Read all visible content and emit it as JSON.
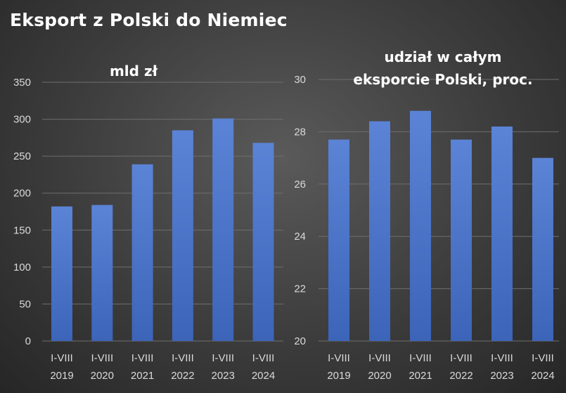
{
  "title": "Eksport z Polski do Niemiec",
  "colors": {
    "bar_top": "#5b83d6",
    "bar_bottom": "#3c64b8",
    "background": "#3c3c3c",
    "text": "#d9d9d9"
  },
  "chart_data": [
    {
      "type": "bar",
      "title": "mld zł",
      "categories": [
        [
          "I-VIII",
          "2019"
        ],
        [
          "I-VIII",
          "2020"
        ],
        [
          "I-VIII",
          "2021"
        ],
        [
          "I-VIII",
          "2022"
        ],
        [
          "I-VIII",
          "2023"
        ],
        [
          "I-VIII",
          "2024"
        ]
      ],
      "values": [
        182,
        184,
        239,
        285,
        301,
        268
      ],
      "ylim": [
        0,
        350
      ],
      "yticks": [
        0,
        50,
        100,
        150,
        200,
        250,
        300,
        350
      ],
      "grid": true
    },
    {
      "type": "bar",
      "title": "udział w całym eksporcie Polski, proc.",
      "title_lines": [
        "udział w całym",
        "eksporcie Polski, proc."
      ],
      "categories": [
        [
          "I-VIII",
          "2019"
        ],
        [
          "I-VIII",
          "2020"
        ],
        [
          "I-VIII",
          "2021"
        ],
        [
          "I-VIII",
          "2022"
        ],
        [
          "I-VIII",
          "2023"
        ],
        [
          "I-VIII",
          "2024"
        ]
      ],
      "values": [
        27.7,
        28.4,
        28.8,
        27.7,
        28.2,
        27.0
      ],
      "ylim": [
        20,
        30
      ],
      "yticks": [
        20,
        22,
        24,
        26,
        28,
        30
      ],
      "grid": true
    }
  ]
}
